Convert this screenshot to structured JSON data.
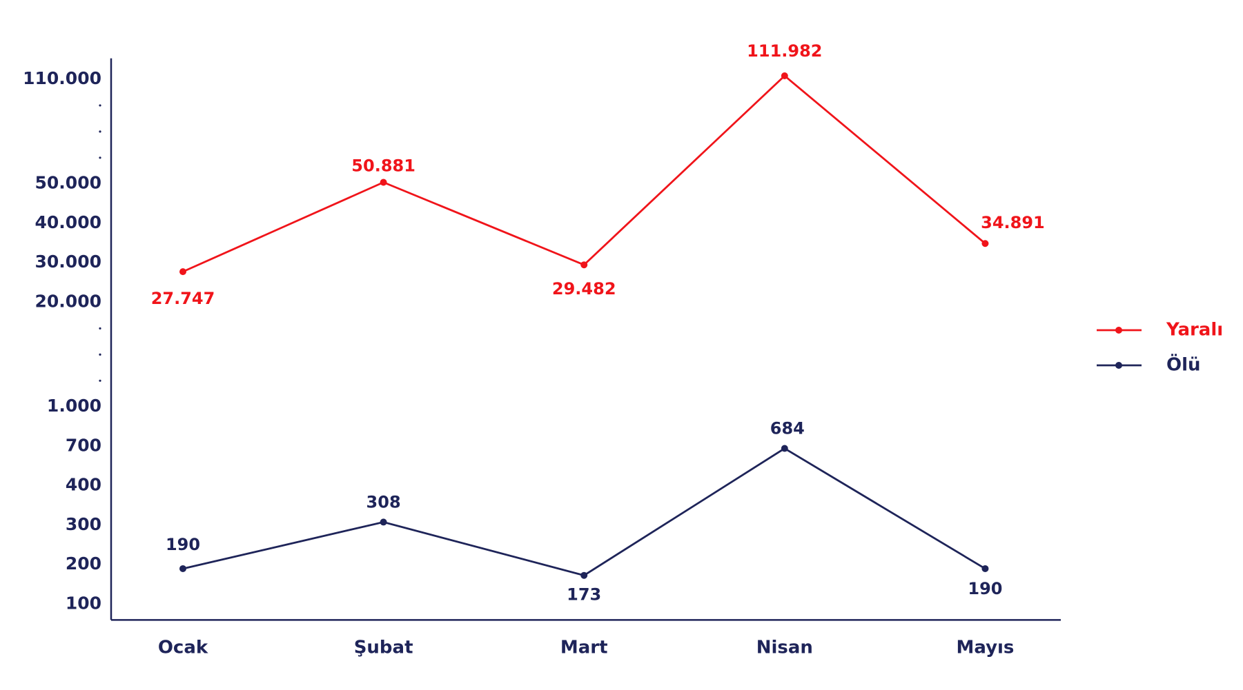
{
  "chart_data": {
    "type": "line",
    "categories": [
      "Ocak",
      "Şubat",
      "Mart",
      "Nisan",
      "Mayıs"
    ],
    "series": [
      {
        "name": "Yaralı",
        "color": "#f0141a",
        "values": [
          27747,
          50881,
          29482,
          111982,
          34891
        ],
        "value_labels": [
          "27.747",
          "50.881",
          "29.482",
          "111.982",
          "34.891"
        ]
      },
      {
        "name": "Ölü",
        "color": "#1e2459",
        "values": [
          190,
          308,
          173,
          684,
          190
        ]
      }
    ],
    "ylim": [
      60,
      122000
    ],
    "yticks": [
      100,
      200,
      300,
      400,
      700,
      {
        "value": 1000,
        "label": "1.000"
      },
      {
        "value": 20000,
        "label": "20.000"
      },
      {
        "value": 30000,
        "label": "30.000"
      },
      {
        "value": 40000,
        "label": "40.000"
      },
      {
        "value": 50000,
        "label": "50.000"
      },
      {
        "value": 110000,
        "label": "110.000"
      }
    ],
    "legend": "right"
  }
}
